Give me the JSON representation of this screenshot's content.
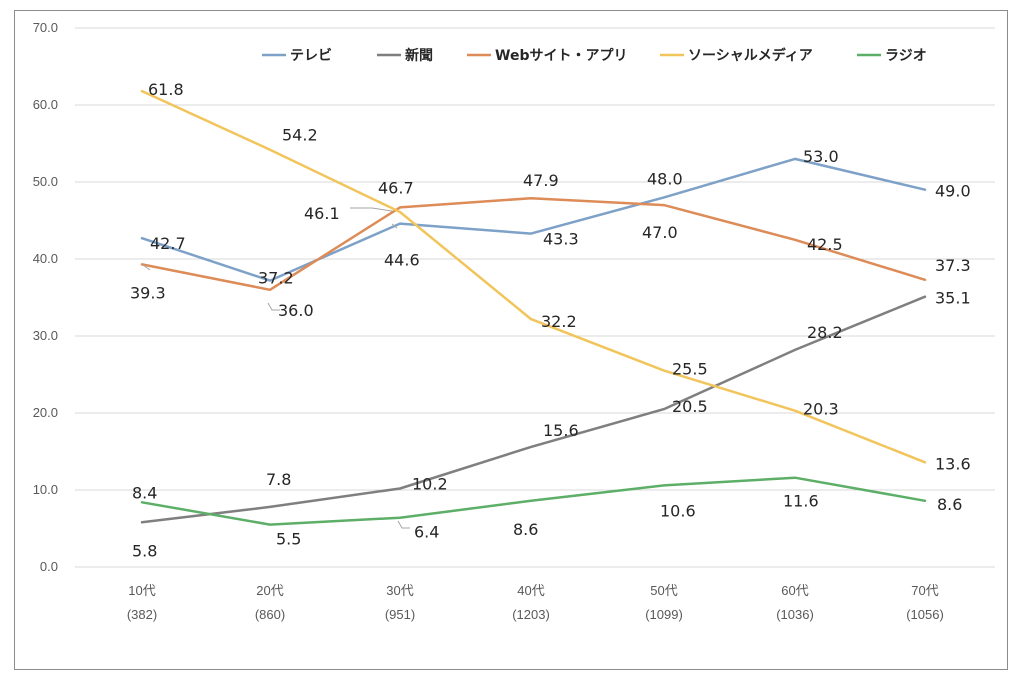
{
  "chart_data": {
    "type": "line",
    "categories": [
      "10代",
      "20代",
      "30代",
      "40代",
      "50代",
      "60代",
      "70代"
    ],
    "category_counts": [
      "(382)",
      "(860)",
      "(951)",
      "(1203)",
      "(1099)",
      "(1036)",
      "(1056)"
    ],
    "ylim": [
      0,
      70
    ],
    "yticks": [
      "0.0",
      "10.0",
      "20.0",
      "30.0",
      "40.0",
      "50.0",
      "60.0",
      "70.0"
    ],
    "grid": true,
    "legend_position": "top",
    "series": [
      {
        "name": "テレビ",
        "color": "#7ea1c8",
        "values": [
          42.7,
          37.2,
          44.6,
          43.3,
          48.0,
          53.0,
          49.0
        ],
        "labels": [
          "42.7",
          "37.2",
          "44.6",
          "43.3",
          "48.0",
          "53.0",
          "49.0"
        ]
      },
      {
        "name": "新聞",
        "color": "#7f7f7f",
        "values": [
          5.8,
          7.8,
          10.2,
          15.6,
          20.5,
          28.2,
          35.1
        ],
        "labels": [
          "5.8",
          "7.8",
          "10.2",
          "15.6",
          "20.5",
          "28.2",
          "35.1"
        ]
      },
      {
        "name": "Webサイト・アプリ",
        "color": "#dd8b57",
        "values": [
          39.3,
          36.0,
          46.7,
          47.9,
          47.0,
          42.5,
          37.3
        ],
        "labels": [
          "39.3",
          "36.0",
          "46.7",
          "47.9",
          "47.0",
          "42.5",
          "37.3"
        ]
      },
      {
        "name": "ソーシャルメディア",
        "color": "#f2c55c",
        "values": [
          61.8,
          54.2,
          46.1,
          32.2,
          25.5,
          20.3,
          13.6
        ],
        "labels": [
          "61.8",
          "54.2",
          "46.1",
          "32.2",
          "25.5",
          "20.3",
          "13.6"
        ]
      },
      {
        "name": "ラジオ",
        "color": "#5daf68",
        "values": [
          8.4,
          5.5,
          6.4,
          8.6,
          10.6,
          11.6,
          8.6
        ],
        "labels": [
          "8.4",
          "5.5",
          "6.4",
          "8.6",
          "10.6",
          "11.6",
          "8.6"
        ]
      }
    ]
  }
}
